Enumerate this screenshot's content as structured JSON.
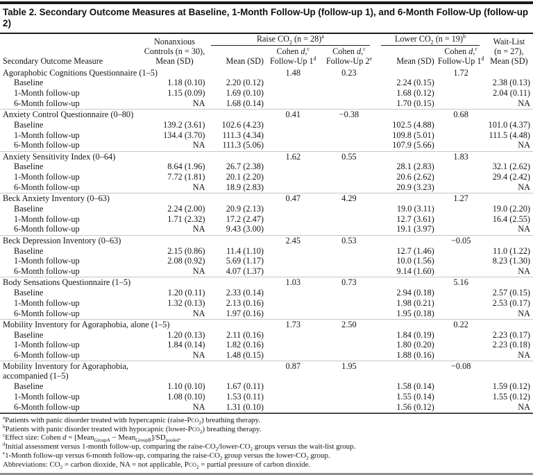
{
  "title": "Table 2. Secondary Outcome Measures at Baseline, 1-Month Follow-Up (follow-up 1), and 6-Month Follow-Up (follow-up 2)",
  "header": {
    "measure_col": "Secondary Outcome Measure",
    "nonanxious": "Nonanxious\nControls (n = 30),\nMean (SD)",
    "raise_group": "Raise CO~{2} (n = 28)^{a}",
    "lower_group": "Lower CO~{2} (n = 19)^{b}",
    "waitlist": "Wait-List\n(n = 27),\nMean (SD)",
    "sub": {
      "mean_sd": "Mean (SD)",
      "cohen_fu1": "Cohen *{d},^{c}\nFollow-Up 1^{d}",
      "cohen_fu2": "Cohen *{d},^{c}\nFollow-Up 2^{e}"
    }
  },
  "measures": [
    {
      "name": "Agoraphobic Cognitions Questionnaire (1–5)",
      "cohen_raise_fu1": "1.48",
      "cohen_raise_fu2": "0.23",
      "cohen_lower_fu1": "1.72",
      "rows": [
        {
          "label": "Baseline",
          "nonanxious": "1.18 (0.10)",
          "raise": "2.20 (0.12)",
          "lower": "2.24 (0.15)",
          "waitlist": "2.38 (0.13)"
        },
        {
          "label": "1-Month follow-up",
          "nonanxious": "1.15 (0.09)",
          "raise": "1.69 (0.10)",
          "lower": "1.68 (0.12)",
          "waitlist": "2.04 (0.11)"
        },
        {
          "label": "6-Month follow-up",
          "nonanxious": "NA",
          "raise": "1.68 (0.14)",
          "lower": "1.70 (0.15)",
          "waitlist": "NA"
        }
      ]
    },
    {
      "name": "Anxiety Control Questionnaire (0–80)",
      "cohen_raise_fu1": "0.41",
      "cohen_raise_fu2": "−0.38",
      "cohen_lower_fu1": "0.68",
      "rows": [
        {
          "label": "Baseline",
          "nonanxious": "139.2 (3.61)",
          "raise": "102.6 (4.23)",
          "lower": "102.5 (4.88)",
          "waitlist": "101.0 (4.37)"
        },
        {
          "label": "1-Month follow-up",
          "nonanxious": "134.4 (3.70)",
          "raise": "111.3 (4.34)",
          "lower": "109.8 (5.01)",
          "waitlist": "111.5 (4.48)"
        },
        {
          "label": "6-Month follow-up",
          "nonanxious": "NA",
          "raise": "111.3 (5.06)",
          "lower": "107.9 (5.66)",
          "waitlist": "NA"
        }
      ]
    },
    {
      "name": "Anxiety Sensitivity Index (0–64)",
      "cohen_raise_fu1": "1.62",
      "cohen_raise_fu2": "0.55",
      "cohen_lower_fu1": "1.83",
      "rows": [
        {
          "label": "Baseline",
          "nonanxious": "8.64 (1.96)",
          "raise": "26.7 (2.38)",
          "lower": "28.1 (2.83)",
          "waitlist": "32.1 (2.62)"
        },
        {
          "label": "1-Month follow-up",
          "nonanxious": "7.72 (1.81)",
          "raise": "20.1 (2.20)",
          "lower": "20.6 (2.62)",
          "waitlist": "29.4 (2.42)"
        },
        {
          "label": "6-Month follow-up",
          "nonanxious": "NA",
          "raise": "18.9 (2.83)",
          "lower": "20.9 (3.23)",
          "waitlist": "NA"
        }
      ]
    },
    {
      "name": "Beck Anxiety Inventory (0–63)",
      "cohen_raise_fu1": "0.47",
      "cohen_raise_fu2": "4.29",
      "cohen_lower_fu1": "1.27",
      "rows": [
        {
          "label": "Baseline",
          "nonanxious": "2.24 (2.00)",
          "raise": "20.9 (2.13)",
          "lower": "19.0 (3.11)",
          "waitlist": "19.0 (2.20)"
        },
        {
          "label": "1-Month follow-up",
          "nonanxious": "1.71 (2.32)",
          "raise": "17.2 (2.47)",
          "lower": "12.7 (3.61)",
          "waitlist": "16.4 (2.55)"
        },
        {
          "label": "6-Month follow-up",
          "nonanxious": "NA",
          "raise": "9.43 (3.00)",
          "lower": "19.1 (3.97)",
          "waitlist": "NA"
        }
      ]
    },
    {
      "name": "Beck Depression Inventory (0–63)",
      "cohen_raise_fu1": "2.45",
      "cohen_raise_fu2": "0.53",
      "cohen_lower_fu1": "−0.05",
      "rows": [
        {
          "label": "Baseline",
          "nonanxious": "2.15 (0.86)",
          "raise": "11.4 (1.10)",
          "lower": "12.7 (1.46)",
          "waitlist": "11.0 (1.22)"
        },
        {
          "label": "1-Month follow-up",
          "nonanxious": "2.08 (0.92)",
          "raise": "5.69 (1.17)",
          "lower": "10.0 (1.56)",
          "waitlist": "8.23 (1.30)"
        },
        {
          "label": "6-Month follow-up",
          "nonanxious": "NA",
          "raise": "4.07 (1.37)",
          "lower": "9.14 (1.60)",
          "waitlist": "NA"
        }
      ]
    },
    {
      "name": "Body Sensations Questionnaire (1–5)",
      "cohen_raise_fu1": "1.03",
      "cohen_raise_fu2": "0.73",
      "cohen_lower_fu1": "5.16",
      "rows": [
        {
          "label": "Baseline",
          "nonanxious": "1.20 (0.11)",
          "raise": "2.33 (0.14)",
          "lower": "2.94 (0.18)",
          "waitlist": "2.57 (0.15)"
        },
        {
          "label": "1-Month follow-up",
          "nonanxious": "1.32 (0.13)",
          "raise": "2.13 (0.16)",
          "lower": "1.98 (0.21)",
          "waitlist": "2.53 (0.17)"
        },
        {
          "label": "6-Month follow-up",
          "nonanxious": "NA",
          "raise": "1.97 (0.16)",
          "lower": "1.95 (0.18)",
          "waitlist": "NA"
        }
      ]
    },
    {
      "name": "Mobility Inventory for Agoraphobia, alone (1–5)",
      "cohen_raise_fu1": "1.73",
      "cohen_raise_fu2": "2.50",
      "cohen_lower_fu1": "0.22",
      "rows": [
        {
          "label": "Baseline",
          "nonanxious": "1.20 (0.13)",
          "raise": "2.11 (0.16)",
          "lower": "1.84 (0.19)",
          "waitlist": "2.23 (0.17)"
        },
        {
          "label": "1-Month follow-up",
          "nonanxious": "1.84 (0.14)",
          "raise": "1.82 (0.16)",
          "lower": "1.80 (0.20)",
          "waitlist": "2.23 (0.18)"
        },
        {
          "label": "6-Month follow-up",
          "nonanxious": "NA",
          "raise": "1.48 (0.15)",
          "lower": "1.88 (0.16)",
          "waitlist": "NA"
        }
      ]
    },
    {
      "name": "Mobility Inventory for Agoraphobia,\naccompanied (1–5)",
      "cohen_raise_fu1": "0.87",
      "cohen_raise_fu2": "1.95",
      "cohen_lower_fu1": "−0.08",
      "rows": [
        {
          "label": "Baseline",
          "nonanxious": "1.10 (0.10)",
          "raise": "1.67 (0.11)",
          "lower": "1.58 (0.14)",
          "waitlist": "1.59 (0.12)"
        },
        {
          "label": "1-Month follow-up",
          "nonanxious": "1.08 (0.10)",
          "raise": "1.53 (0.11)",
          "lower": "1.55 (0.14)",
          "waitlist": "1.55 (0.12)"
        },
        {
          "label": "6-Month follow-up",
          "nonanxious": "NA",
          "raise": "1.31 (0.10)",
          "lower": "1.56 (0.12)",
          "waitlist": "NA"
        }
      ]
    }
  ],
  "footnotes": [
    "^{a}Patients with panic disorder treated with hypercapnic (raise-P%{co}~{2}) breathing therapy.",
    "^{b}Patients with panic disorder treated with hypocapnic (lower-P%{co}~{2}) breathing therapy.",
    "^{c}Effect size: Cohen *{d} = [Mean~{GroupA} − Mean~{GroupB}]/SD~{pooled}.",
    "^{d}Initial assessment versus 1-month follow-up, comparing the raise-CO~{2}/lower-CO~{2} groups versus the wait-list group.",
    "^{e}1-Month follow-up versus 6-month follow-up, comparing the raise-CO~{2} group versus the lower-CO~{2} group.",
    "Abbreviations: CO~{2} = carbon dioxide, NA = not applicable, P%{co}~{2} = partial pressure of carbon dioxide."
  ]
}
